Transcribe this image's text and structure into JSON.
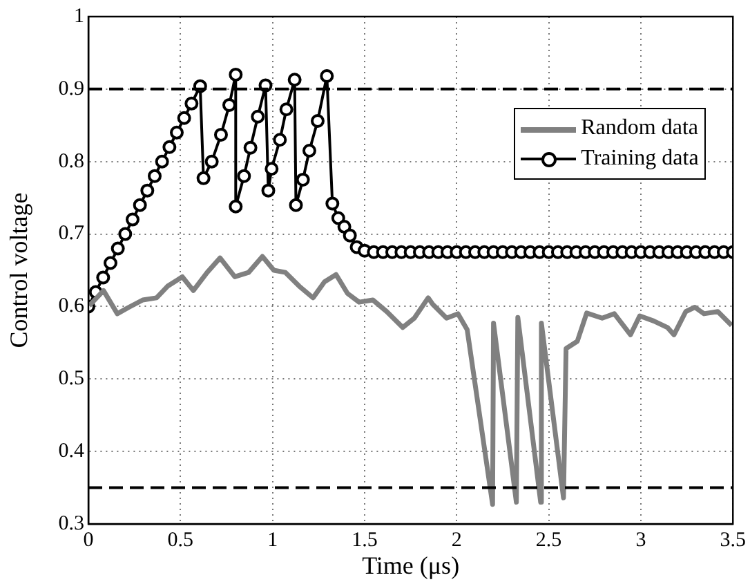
{
  "chart_data": {
    "type": "line",
    "xlabel": "Time (μs)",
    "ylabel": "Control voltage",
    "xlim": [
      0,
      3.5
    ],
    "xticks": [
      0,
      0.5,
      1,
      1.5,
      2,
      2.5,
      3,
      3.5
    ],
    "ylim": [
      0.3,
      1
    ],
    "yticks": [
      0.3,
      0.4,
      0.5,
      0.6,
      0.7,
      0.8,
      0.9,
      1
    ],
    "grid": true,
    "legend": "right",
    "ref_lines": [
      {
        "axis": "y",
        "value": 0.9,
        "color": "#000000",
        "line_style": "dashed"
      },
      {
        "axis": "y",
        "value": 0.35,
        "color": "#000000",
        "line_style": "dashed"
      }
    ],
    "series": [
      {
        "name": "Random data",
        "color": "#808080",
        "marker": "none",
        "x": [
          0.004,
          0.082,
          0.157,
          0.22,
          0.295,
          0.37,
          0.43,
          0.51,
          0.57,
          0.645,
          0.715,
          0.795,
          0.87,
          0.945,
          1.007,
          1.07,
          1.145,
          1.22,
          1.282,
          1.345,
          1.407,
          1.47,
          1.545,
          1.62,
          1.707,
          1.77,
          1.845,
          1.87,
          1.945,
          2.007,
          2.057,
          2.195,
          2.2,
          2.324,
          2.332,
          2.456,
          2.46,
          2.58,
          2.594,
          2.655,
          2.706,
          2.79,
          2.856,
          2.944,
          2.994,
          3.07,
          3.145,
          3.18,
          3.244,
          3.293,
          3.343,
          3.418,
          3.493
        ],
        "values": [
          0.601,
          0.622,
          0.59,
          0.599,
          0.609,
          0.612,
          0.628,
          0.641,
          0.622,
          0.647,
          0.667,
          0.641,
          0.647,
          0.669,
          0.65,
          0.647,
          0.628,
          0.612,
          0.634,
          0.644,
          0.618,
          0.606,
          0.609,
          0.593,
          0.571,
          0.584,
          0.612,
          0.603,
          0.584,
          0.59,
          0.568,
          0.327,
          0.577,
          0.33,
          0.585,
          0.33,
          0.577,
          0.336,
          0.542,
          0.552,
          0.591,
          0.584,
          0.59,
          0.561,
          0.587,
          0.58,
          0.571,
          0.561,
          0.593,
          0.599,
          0.59,
          0.593,
          0.574
        ]
      },
      {
        "name": "Training data",
        "color": "#000000",
        "marker": "circle",
        "x": [
          0,
          0.04,
          0.08,
          0.12,
          0.16,
          0.2,
          0.24,
          0.28,
          0.32,
          0.36,
          0.4,
          0.44,
          0.48,
          0.52,
          0.56,
          0.607,
          0.625,
          0.67,
          0.72,
          0.765,
          0.8,
          0.8,
          0.845,
          0.88,
          0.92,
          0.962,
          0.977,
          0.995,
          1.04,
          1.075,
          1.12,
          1.127,
          1.165,
          1.2,
          1.245,
          1.295,
          1.325,
          1.357,
          1.39,
          1.42,
          1.457,
          1.5,
          1.55,
          1.6,
          1.65,
          1.7,
          1.75,
          1.8,
          1.85,
          1.9,
          1.95,
          2,
          2.05,
          2.1,
          2.15,
          2.2,
          2.25,
          2.3,
          2.35,
          2.4,
          2.45,
          2.5,
          2.55,
          2.6,
          2.65,
          2.7,
          2.75,
          2.8,
          2.85,
          2.9,
          2.95,
          3,
          3.05,
          3.1,
          3.15,
          3.2,
          3.25,
          3.3,
          3.35,
          3.4,
          3.45,
          3.5
        ],
        "values": [
          0.6,
          0.62,
          0.64,
          0.66,
          0.68,
          0.7,
          0.72,
          0.74,
          0.76,
          0.78,
          0.8,
          0.82,
          0.84,
          0.86,
          0.88,
          0.904,
          0.777,
          0.8,
          0.837,
          0.878,
          0.92,
          0.738,
          0.78,
          0.819,
          0.862,
          0.905,
          0.76,
          0.79,
          0.83,
          0.872,
          0.913,
          0.74,
          0.775,
          0.815,
          0.856,
          0.918,
          0.742,
          0.722,
          0.71,
          0.698,
          0.682,
          0.677,
          0.675,
          0.675,
          0.675,
          0.675,
          0.675,
          0.675,
          0.675,
          0.675,
          0.675,
          0.675,
          0.675,
          0.675,
          0.675,
          0.675,
          0.675,
          0.675,
          0.675,
          0.675,
          0.675,
          0.675,
          0.675,
          0.675,
          0.675,
          0.675,
          0.675,
          0.675,
          0.675,
          0.675,
          0.675,
          0.675,
          0.675,
          0.675,
          0.675,
          0.675,
          0.675,
          0.675,
          0.675,
          0.675,
          0.675,
          0.675
        ]
      }
    ]
  }
}
